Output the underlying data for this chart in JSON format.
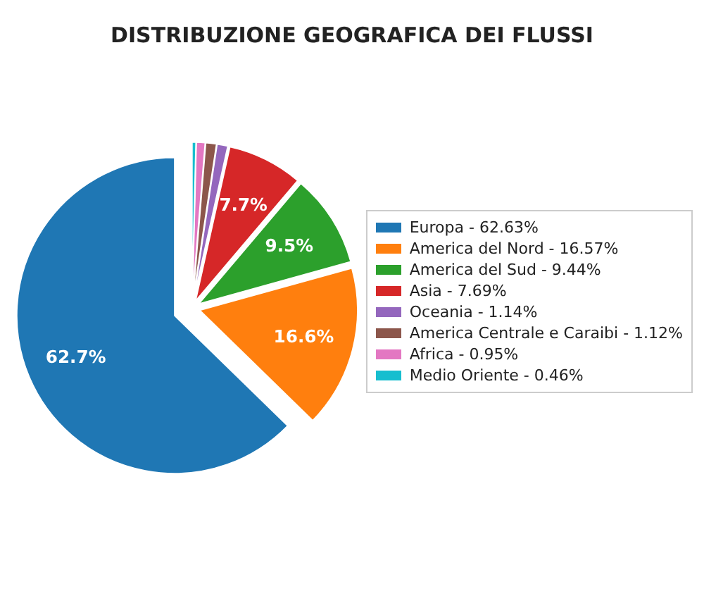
{
  "chart_data": {
    "type": "pie",
    "title": "DISTRIBUZIONE GEOGRAFICA DEI FLUSSI",
    "categories": [
      "Europa - 62.63%",
      "America del Nord - 16.57%",
      "America del Sud - 9.44%",
      "Asia - 7.69%",
      "Oceania - 1.14%",
      "America Centrale e Caraibi - 1.12%",
      "Africa - 0.95%",
      "Medio Oriente - 0.46%"
    ],
    "values": [
      62.7,
      16.6,
      9.5,
      7.7,
      1.1,
      1.1,
      0.9,
      0.4
    ],
    "colors": [
      "#1f77b4",
      "#ff7f0e",
      "#2ca02c",
      "#d62728",
      "#9467bd",
      "#8c564b",
      "#e377c2",
      "#17becf"
    ],
    "value_labels": [
      "62.7%",
      "16.6%",
      "9.5%",
      "7.7%",
      null,
      null,
      null,
      null
    ],
    "legend": "right"
  }
}
